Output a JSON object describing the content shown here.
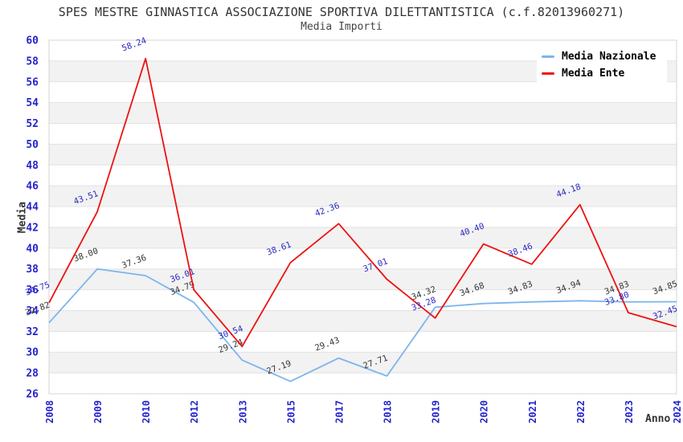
{
  "chart_data": {
    "type": "line",
    "title": "SPES MESTRE GINNASTICA ASSOCIAZIONE SPORTIVA DILETTANTISTICA (c.f.82013960271)",
    "subtitle": "Media Importi",
    "xlabel": "Anno",
    "ylabel": "Media",
    "x": [
      "2008",
      "2009",
      "2010",
      "2012",
      "2013",
      "2015",
      "2017",
      "2018",
      "2019",
      "2020",
      "2021",
      "2022",
      "2023",
      "2024"
    ],
    "series": [
      {
        "name": "Media Nazionale",
        "color": "#7cb5ec",
        "label_color": "#333333",
        "values": [
          32.82,
          38.0,
          37.36,
          34.79,
          29.24,
          27.19,
          29.43,
          27.71,
          34.32,
          34.68,
          34.83,
          34.94,
          34.83,
          34.85
        ]
      },
      {
        "name": "Media Ente",
        "color": "#ee1111",
        "label_color": "#2929c0",
        "values": [
          34.75,
          43.51,
          58.24,
          36.01,
          30.54,
          38.61,
          42.36,
          37.01,
          33.28,
          40.4,
          38.46,
          44.18,
          33.8,
          32.45
        ]
      }
    ],
    "ylim": [
      26,
      60
    ],
    "ytick_step": 2,
    "axis_tick_color": "#2525cc",
    "grid": "horizontal-bands",
    "band_color": "#f2f2f2",
    "gridline_color": "#e2e2e2",
    "plot_border_color": "#d4d4d4",
    "legend_position": "top-right"
  }
}
